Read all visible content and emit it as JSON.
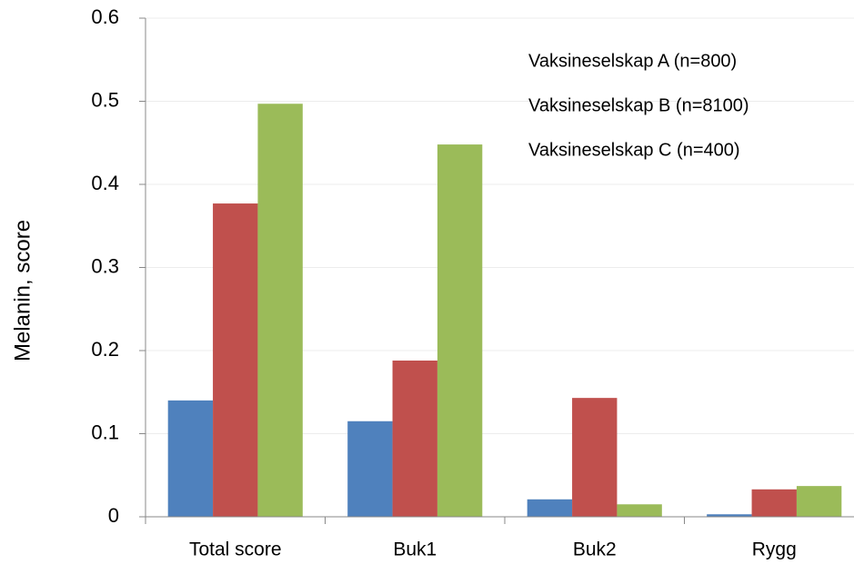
{
  "chart_data": {
    "type": "bar",
    "y_label": "Melanin, score",
    "categories": [
      "Total score",
      "Buk1",
      "Buk2",
      "Rygg"
    ],
    "series": [
      {
        "name": "Vaksineselskap A (n=800)",
        "color": "#4f81bd",
        "values": [
          0.14,
          0.115,
          0.021,
          0.003
        ]
      },
      {
        "name": "Vaksineselskap B (n=8100)",
        "color": "#c0504d",
        "values": [
          0.377,
          0.188,
          0.143,
          0.033
        ]
      },
      {
        "name": "Vaksineselskap C (n=400)",
        "color": "#9bbb59",
        "values": [
          0.497,
          0.448,
          0.015,
          0.037
        ]
      }
    ],
    "ylim": [
      0,
      0.6
    ],
    "yticks": [
      0,
      0.1,
      0.2,
      0.3,
      0.4,
      0.5,
      0.6
    ],
    "grid": true,
    "legend": "upper right"
  }
}
